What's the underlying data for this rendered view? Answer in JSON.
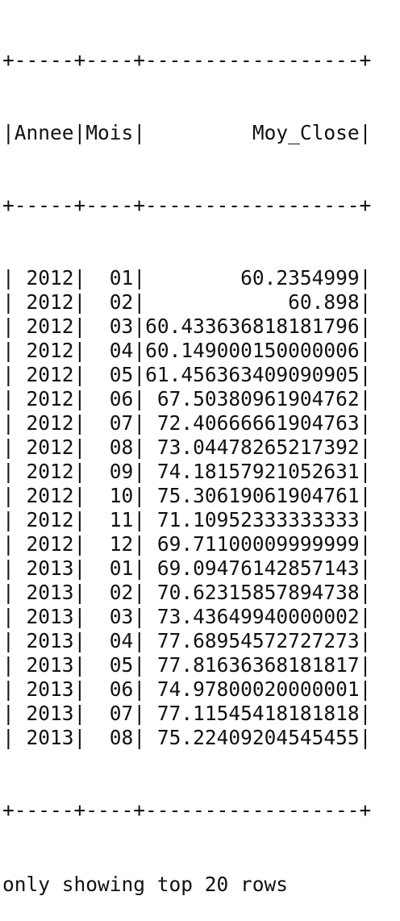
{
  "table": {
    "border": "+-----+----+------------------+",
    "columns": [
      "Annee",
      "Mois",
      "Moy_Close"
    ],
    "widths": [
      5,
      4,
      18
    ],
    "align": [
      "right",
      "right",
      "right"
    ],
    "rows": [
      [
        "2012",
        "01",
        "60.2354999"
      ],
      [
        "2012",
        "02",
        "60.898"
      ],
      [
        "2012",
        "03",
        "60.433636818181796"
      ],
      [
        "2012",
        "04",
        "60.149000150000006"
      ],
      [
        "2012",
        "05",
        "61.456363409090905"
      ],
      [
        "2012",
        "06",
        "67.50380961904762"
      ],
      [
        "2012",
        "07",
        "72.40666661904763"
      ],
      [
        "2012",
        "08",
        "73.04478265217392"
      ],
      [
        "2012",
        "09",
        "74.18157921052631"
      ],
      [
        "2012",
        "10",
        "75.30619061904761"
      ],
      [
        "2012",
        "11",
        "71.10952333333333"
      ],
      [
        "2012",
        "12",
        "69.71100009999999"
      ],
      [
        "2013",
        "01",
        "69.09476142857143"
      ],
      [
        "2013",
        "02",
        "70.62315857894738"
      ],
      [
        "2013",
        "03",
        "73.43649940000002"
      ],
      [
        "2013",
        "04",
        "77.68954572727273"
      ],
      [
        "2013",
        "05",
        "77.81636368181817"
      ],
      [
        "2013",
        "06",
        "74.97800020000001"
      ],
      [
        "2013",
        "07",
        "77.11545418181818"
      ],
      [
        "2013",
        "08",
        "75.22409204545455"
      ]
    ]
  },
  "footer": "only showing top 20 rows"
}
